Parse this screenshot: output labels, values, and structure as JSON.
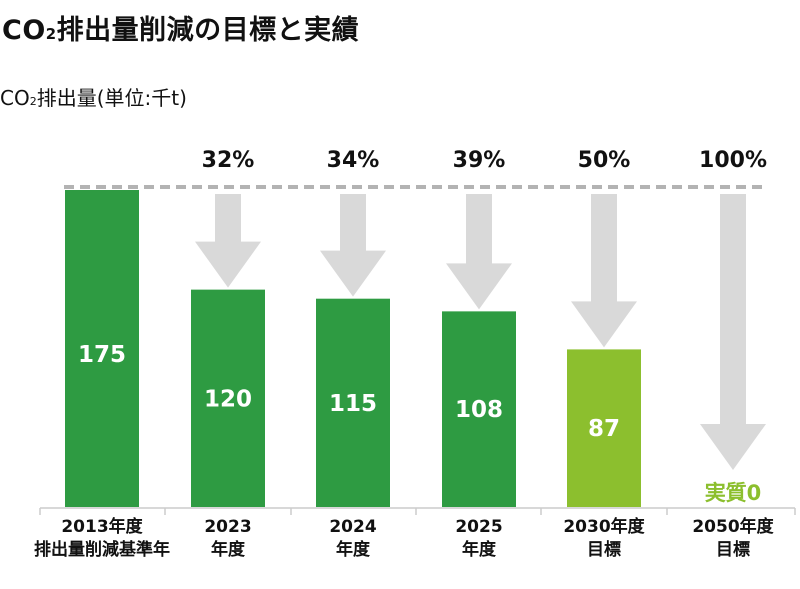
{
  "title": {
    "prefix": "CO",
    "sub": "2",
    "rest": "排出量削減の目標と実績"
  },
  "subtitle": {
    "prefix": "CO",
    "sub": "2",
    "rest": "排出量(単位:千t)"
  },
  "colors": {
    "actual": "#2e9b42",
    "target": "#8cbf2e",
    "arrow": "#d9d9d9",
    "baseline_dash": "#b3b3b3",
    "zero_label": "#8cbf2e"
  },
  "chart_data": {
    "type": "bar",
    "title": "CO2排出量削減の目標と実績",
    "ylabel": "CO2排出量(単位:千t)",
    "categories": [
      [
        "2013年度",
        "排出量削減基準年"
      ],
      [
        "2023",
        "年度"
      ],
      [
        "2024",
        "年度"
      ],
      [
        "2025",
        "年度"
      ],
      [
        "2030年度",
        "目標"
      ],
      [
        "2050年度",
        "目標"
      ]
    ],
    "values": [
      175,
      120,
      115,
      108,
      87,
      0
    ],
    "value_labels": [
      "175",
      "120",
      "115",
      "108",
      "87",
      "実質0"
    ],
    "reductions": [
      null,
      "32%",
      "34%",
      "39%",
      "50%",
      "100%"
    ],
    "kinds": [
      "actual",
      "actual",
      "actual",
      "actual",
      "target",
      "target"
    ],
    "ylim": [
      0,
      175
    ]
  }
}
